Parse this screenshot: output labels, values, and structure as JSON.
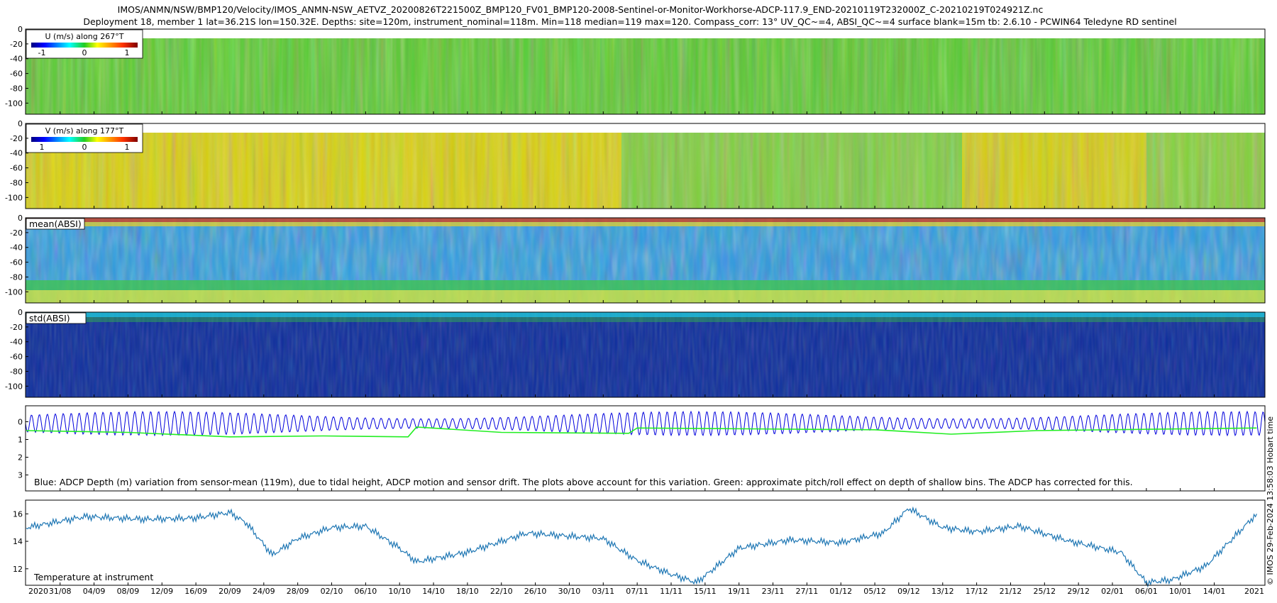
{
  "title": {
    "line1": "IMOS/ANMN/NSW/BMP120/Velocity/IMOS_ANMN-NSW_AETVZ_20200826T221500Z_BMP120_FV01_BMP120-2008-Sentinel-or-Monitor-Workhorse-ADCP-117.9_END-20210119T232000Z_C-20210219T024921Z.nc",
    "line2": "Deployment 18, member 1 lat=36.21S lon=150.32E. Depths: site=120m, instrument_nominal=118m. Min=118 median=119 max=120. Compass_corr: 13° UV_QC~=4, ABSI_QC~=4 surface blank=15m tb: 2.6.10 - PCWIN64 Teledyne RD sentinel"
  },
  "side_label": "© IMOS 29-Feb-2024 13:58:03 Hobart time",
  "x_axis": {
    "ticks": [
      "31/08",
      "04/09",
      "08/09",
      "12/09",
      "16/09",
      "20/09",
      "24/09",
      "28/09",
      "02/10",
      "06/10",
      "10/10",
      "14/10",
      "18/10",
      "22/10",
      "26/10",
      "30/10",
      "03/11",
      "07/11",
      "11/11",
      "15/11",
      "19/11",
      "23/11",
      "27/11",
      "01/12",
      "05/12",
      "09/12",
      "13/12",
      "17/12",
      "21/12",
      "25/12",
      "29/12",
      "02/01",
      "06/01",
      "10/01",
      "14/01"
    ],
    "year_start": "2020",
    "year_end": "2021"
  },
  "colors": {
    "blue_series": "#0000dd",
    "green_series": "#22ee22",
    "temperature_line": "#1f77b4"
  },
  "chart_data": [
    {
      "type": "heatmap",
      "name": "U velocity",
      "legend": {
        "label": "U (m/s) along 267°T",
        "ticks": [
          "-1",
          "0",
          "1"
        ],
        "range": [
          -1.3,
          1.3
        ]
      },
      "colormap": "jet",
      "y_ticks": [
        "0",
        "-20",
        "-40",
        "-60",
        "-80",
        "-100"
      ],
      "ylim": [
        -115,
        0
      ],
      "description_values": {
        "typical_value": 0.0,
        "range": [
          -0.4,
          0.5
        ]
      }
    },
    {
      "type": "heatmap",
      "name": "V velocity",
      "legend": {
        "label": "V (m/s) along 177°T",
        "ticks": [
          "1",
          "0",
          "1"
        ],
        "range": [
          -1.3,
          1.3
        ]
      },
      "colormap": "jet",
      "y_ticks": [
        "0",
        "-20",
        "-40",
        "-60",
        "-80",
        "-100"
      ],
      "ylim": [
        -115,
        0
      ],
      "description_values": {
        "typical_value": 0.3,
        "range": [
          -0.4,
          1.0
        ]
      }
    },
    {
      "type": "heatmap",
      "name": "mean ABSI",
      "legend": {
        "label": "mean(ABSI)"
      },
      "colormap": "jet",
      "y_ticks": [
        "0",
        "-20",
        "-40",
        "-60",
        "-80",
        "-100"
      ],
      "ylim": [
        -115,
        0
      ]
    },
    {
      "type": "heatmap",
      "name": "std ABSI",
      "legend": {
        "label": "std(ABSI)"
      },
      "colormap": "jet",
      "y_ticks": [
        "0",
        "-20",
        "-40",
        "-60",
        "-80",
        "-100"
      ],
      "ylim": [
        -115,
        0
      ]
    },
    {
      "type": "line",
      "name": "ADCP depth variation",
      "y_ticks": [
        "0",
        "1",
        "2",
        "3"
      ],
      "ylim": [
        -0.9,
        3.9
      ],
      "y_reversed": true,
      "annotation": "Blue: ADCP Depth (m) variation from sensor-mean (119m), due to tidal height, ADCP motion and sensor drift. The plots above account for this variation. Green: approximate pitch/roll effect on depth of shallow bins. The ADCP has corrected for this.",
      "series": [
        {
          "color": "blue",
          "tidal_amplitude_m": 0.75,
          "mean_m": 0.1
        },
        {
          "color": "green",
          "x": [
            "2020-08-27",
            "2020-09-08",
            "2020-09-20",
            "2020-10-01",
            "2020-10-11",
            "2020-10-12",
            "2020-10-22",
            "2020-11-06",
            "2020-11-07",
            "2020-11-20",
            "2020-12-05",
            "2020-12-14",
            "2020-12-24",
            "2021-01-19"
          ],
          "values": [
            0.5,
            0.6,
            0.85,
            0.8,
            0.85,
            0.3,
            0.6,
            0.65,
            0.35,
            0.4,
            0.45,
            0.7,
            0.5,
            0.35
          ]
        }
      ]
    },
    {
      "type": "line",
      "name": "Temperature",
      "annotation": "Temperature at instrument",
      "y_ticks": [
        "12",
        "14",
        "16"
      ],
      "ylim": [
        10.8,
        17.0
      ],
      "x": [
        "2020-08-27",
        "2020-09-03",
        "2020-09-10",
        "2020-09-16",
        "2020-09-20",
        "2020-09-22",
        "2020-09-25",
        "2020-09-28",
        "2020-10-02",
        "2020-10-06",
        "2020-10-10",
        "2020-10-12",
        "2020-10-18",
        "2020-10-25",
        "2020-11-03",
        "2020-11-07",
        "2020-11-11",
        "2020-11-14",
        "2020-11-19",
        "2020-11-25",
        "2020-12-01",
        "2020-12-06",
        "2020-12-09",
        "2020-12-13",
        "2020-12-17",
        "2020-12-22",
        "2020-12-28",
        "2021-01-03",
        "2021-01-06",
        "2021-01-09",
        "2021-01-13",
        "2021-01-19"
      ],
      "values": [
        15.0,
        15.8,
        15.6,
        15.7,
        16.1,
        15.3,
        13.0,
        14.2,
        15.0,
        15.1,
        13.5,
        12.5,
        13.2,
        14.6,
        14.2,
        12.6,
        11.6,
        11.0,
        13.5,
        14.1,
        13.9,
        14.6,
        16.4,
        15.0,
        14.7,
        15.1,
        14.0,
        13.2,
        11.0,
        11.2,
        12.2,
        16.0
      ]
    }
  ]
}
